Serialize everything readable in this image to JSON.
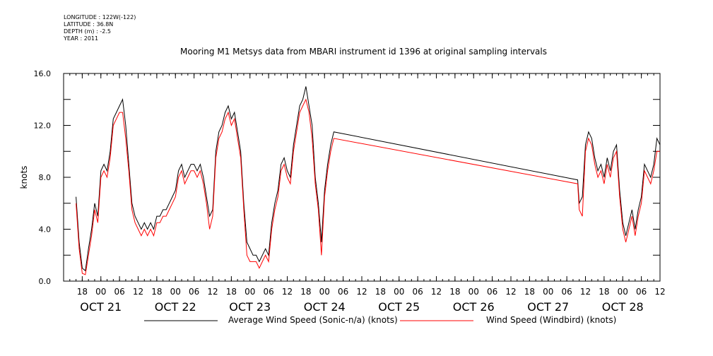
{
  "metadata": {
    "longitude": "LONGITUDE : 122W(-122)",
    "latitude": "LATITUDE : 36.8N",
    "depth": "DEPTH (m) : -2.5",
    "year": "YEAR : 2011"
  },
  "chart_data": {
    "type": "line",
    "title": "Mooring M1 Metsys data from MBARI instrument id 1396 at original sampling intervals",
    "xlabel": "",
    "ylabel": "knots",
    "ylim": [
      0,
      16
    ],
    "yticks": [
      "0.0",
      "4.0",
      "8.0",
      "12.0",
      "16.0"
    ],
    "x_hour_ticks": [
      "18",
      "00",
      "06",
      "12",
      "18",
      "00",
      "06",
      "12",
      "18",
      "00",
      "06",
      "12",
      "18",
      "00",
      "06",
      "12",
      "18",
      "00",
      "06",
      "12",
      "18",
      "00",
      "06",
      "12",
      "18",
      "00",
      "06",
      "12",
      "18",
      "00",
      "06",
      "12"
    ],
    "x_day_labels": [
      "OCT 21",
      "OCT 22",
      "OCT 23",
      "OCT 24",
      "OCT 25",
      "OCT 26",
      "OCT 27",
      "OCT 28"
    ],
    "x_unit": "hours since OCT 20 12:00",
    "xlim": [
      0,
      192
    ],
    "series": [
      {
        "name": "Average Wind Speed (Sonic-n/a) (knots)",
        "color": "#000000",
        "points": [
          [
            4,
            6.5
          ],
          [
            5,
            3.0
          ],
          [
            6,
            1.0
          ],
          [
            7,
            0.8
          ],
          [
            8,
            2.5
          ],
          [
            9,
            4.0
          ],
          [
            10,
            6.0
          ],
          [
            11,
            5.0
          ],
          [
            12,
            8.5
          ],
          [
            13,
            9.0
          ],
          [
            14,
            8.5
          ],
          [
            15,
            10.0
          ],
          [
            16,
            12.5
          ],
          [
            17,
            13.0
          ],
          [
            18,
            13.5
          ],
          [
            19,
            14.0
          ],
          [
            20,
            12.0
          ],
          [
            21,
            9.0
          ],
          [
            22,
            6.0
          ],
          [
            23,
            5.0
          ],
          [
            24,
            4.5
          ],
          [
            25,
            4.0
          ],
          [
            26,
            4.5
          ],
          [
            27,
            4.0
          ],
          [
            28,
            4.5
          ],
          [
            29,
            4.0
          ],
          [
            30,
            5.0
          ],
          [
            31,
            5.0
          ],
          [
            32,
            5.5
          ],
          [
            33,
            5.5
          ],
          [
            34,
            6.0
          ],
          [
            35,
            6.5
          ],
          [
            36,
            7.0
          ],
          [
            37,
            8.5
          ],
          [
            38,
            9.0
          ],
          [
            39,
            8.0
          ],
          [
            40,
            8.5
          ],
          [
            41,
            9.0
          ],
          [
            42,
            9.0
          ],
          [
            43,
            8.5
          ],
          [
            44,
            9.0
          ],
          [
            45,
            8.0
          ],
          [
            46,
            6.5
          ],
          [
            47,
            5.0
          ],
          [
            48,
            5.5
          ],
          [
            49,
            10.0
          ],
          [
            50,
            11.5
          ],
          [
            51,
            12.0
          ],
          [
            52,
            13.0
          ],
          [
            53,
            13.5
          ],
          [
            54,
            12.5
          ],
          [
            55,
            13.0
          ],
          [
            56,
            11.5
          ],
          [
            57,
            10.0
          ],
          [
            58,
            6.0
          ],
          [
            59,
            3.0
          ],
          [
            60,
            2.5
          ],
          [
            61,
            2.0
          ],
          [
            62,
            2.0
          ],
          [
            63,
            1.5
          ],
          [
            64,
            2.0
          ],
          [
            65,
            2.5
          ],
          [
            66,
            2.0
          ],
          [
            67,
            4.5
          ],
          [
            68,
            6.0
          ],
          [
            69,
            7.0
          ],
          [
            70,
            9.0
          ],
          [
            71,
            9.5
          ],
          [
            72,
            8.5
          ],
          [
            73,
            8.0
          ],
          [
            74,
            10.5
          ],
          [
            75,
            12.0
          ],
          [
            76,
            13.5
          ],
          [
            77,
            14.0
          ],
          [
            78,
            15.0
          ],
          [
            79,
            13.5
          ],
          [
            80,
            12.0
          ],
          [
            81,
            8.0
          ],
          [
            82,
            6.0
          ],
          [
            83,
            3.0
          ],
          [
            84,
            7.0
          ],
          [
            85,
            9.0
          ],
          [
            86,
            10.5
          ],
          [
            87,
            11.5
          ],
          [
            165.5,
            7.8
          ],
          [
            166,
            6.0
          ],
          [
            167,
            6.5
          ],
          [
            168,
            10.5
          ],
          [
            169,
            11.5
          ],
          [
            170,
            11.0
          ],
          [
            171,
            9.5
          ],
          [
            172,
            8.5
          ],
          [
            173,
            9.0
          ],
          [
            174,
            8.0
          ],
          [
            175,
            9.5
          ],
          [
            176,
            8.5
          ],
          [
            177,
            10.0
          ],
          [
            178,
            10.5
          ],
          [
            179,
            7.0
          ],
          [
            180,
            4.5
          ],
          [
            181,
            3.5
          ],
          [
            182,
            4.5
          ],
          [
            183,
            5.5
          ],
          [
            184,
            4.0
          ],
          [
            185,
            5.5
          ],
          [
            186,
            6.5
          ],
          [
            187,
            9.0
          ],
          [
            188,
            8.5
          ],
          [
            189,
            8.0
          ],
          [
            190,
            9.0
          ],
          [
            191,
            11.0
          ],
          [
            192,
            10.5
          ]
        ]
      },
      {
        "name": "Wind Speed (Windbird) (knots)",
        "color": "#ff0000",
        "points": [
          [
            4,
            6.0
          ],
          [
            5,
            2.5
          ],
          [
            6,
            0.6
          ],
          [
            7,
            0.5
          ],
          [
            8,
            2.0
          ],
          [
            9,
            3.5
          ],
          [
            10,
            5.5
          ],
          [
            11,
            4.5
          ],
          [
            12,
            8.0
          ],
          [
            13,
            8.5
          ],
          [
            14,
            8.0
          ],
          [
            15,
            9.5
          ],
          [
            16,
            12.0
          ],
          [
            17,
            12.5
          ],
          [
            18,
            13.0
          ],
          [
            19,
            13.0
          ],
          [
            20,
            11.0
          ],
          [
            21,
            8.5
          ],
          [
            22,
            5.5
          ],
          [
            23,
            4.5
          ],
          [
            24,
            4.0
          ],
          [
            25,
            3.5
          ],
          [
            26,
            4.0
          ],
          [
            27,
            3.5
          ],
          [
            28,
            4.0
          ],
          [
            29,
            3.5
          ],
          [
            30,
            4.5
          ],
          [
            31,
            4.5
          ],
          [
            32,
            5.0
          ],
          [
            33,
            5.0
          ],
          [
            34,
            5.5
          ],
          [
            35,
            6.0
          ],
          [
            36,
            6.5
          ],
          [
            37,
            8.0
          ],
          [
            38,
            8.5
          ],
          [
            39,
            7.5
          ],
          [
            40,
            8.0
          ],
          [
            41,
            8.5
          ],
          [
            42,
            8.5
          ],
          [
            43,
            8.0
          ],
          [
            44,
            8.5
          ],
          [
            45,
            7.5
          ],
          [
            46,
            6.0
          ],
          [
            47,
            4.0
          ],
          [
            48,
            5.0
          ],
          [
            49,
            9.5
          ],
          [
            50,
            11.0
          ],
          [
            51,
            11.5
          ],
          [
            52,
            12.5
          ],
          [
            53,
            13.0
          ],
          [
            54,
            12.0
          ],
          [
            55,
            12.5
          ],
          [
            56,
            11.0
          ],
          [
            57,
            9.5
          ],
          [
            58,
            5.5
          ],
          [
            59,
            2.0
          ],
          [
            60,
            1.5
          ],
          [
            61,
            1.5
          ],
          [
            62,
            1.5
          ],
          [
            63,
            1.0
          ],
          [
            64,
            1.5
          ],
          [
            65,
            2.0
          ],
          [
            66,
            1.5
          ],
          [
            67,
            4.0
          ],
          [
            68,
            5.5
          ],
          [
            69,
            6.5
          ],
          [
            70,
            8.5
          ],
          [
            71,
            9.0
          ],
          [
            72,
            8.0
          ],
          [
            73,
            7.5
          ],
          [
            74,
            10.0
          ],
          [
            75,
            11.5
          ],
          [
            76,
            13.0
          ],
          [
            77,
            13.5
          ],
          [
            78,
            14.0
          ],
          [
            79,
            13.0
          ],
          [
            80,
            11.0
          ],
          [
            81,
            7.5
          ],
          [
            82,
            5.5
          ],
          [
            83,
            2.0
          ],
          [
            84,
            6.5
          ],
          [
            85,
            8.5
          ],
          [
            86,
            10.0
          ],
          [
            87,
            11.0
          ],
          [
            165.5,
            7.5
          ],
          [
            166,
            5.5
          ],
          [
            167,
            5.0
          ],
          [
            168,
            10.0
          ],
          [
            169,
            11.0
          ],
          [
            170,
            10.5
          ],
          [
            171,
            9.0
          ],
          [
            172,
            8.0
          ],
          [
            173,
            8.5
          ],
          [
            174,
            7.5
          ],
          [
            175,
            9.0
          ],
          [
            176,
            8.0
          ],
          [
            177,
            9.5
          ],
          [
            178,
            10.0
          ],
          [
            179,
            6.5
          ],
          [
            180,
            4.0
          ],
          [
            181,
            3.0
          ],
          [
            182,
            4.0
          ],
          [
            183,
            5.0
          ],
          [
            184,
            3.5
          ],
          [
            185,
            5.0
          ],
          [
            186,
            6.0
          ],
          [
            187,
            8.5
          ],
          [
            188,
            8.0
          ],
          [
            189,
            7.5
          ],
          [
            190,
            8.5
          ],
          [
            191,
            10.0
          ],
          [
            192,
            10.0
          ]
        ]
      }
    ]
  }
}
